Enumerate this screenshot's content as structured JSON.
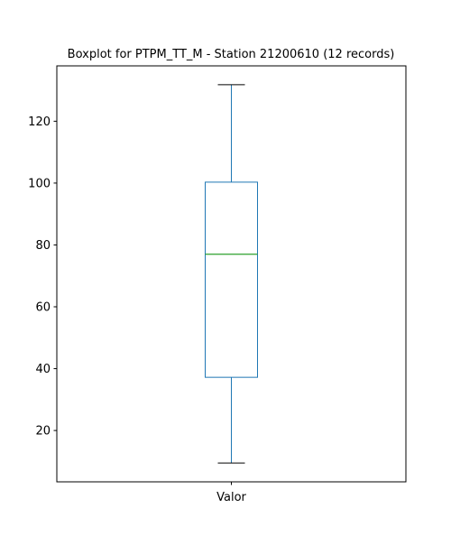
{
  "chart_data": {
    "type": "box",
    "title": "Boxplot for PTPM_TT_M - Station 21200610 (12 records)",
    "xlabel": "",
    "ylabel": "",
    "categories": [
      "Valor"
    ],
    "series": [
      {
        "category": "Valor",
        "whisker_low": 9.5,
        "q1": 37.2,
        "median": 77.0,
        "q3": 100.3,
        "whisker_high": 131.8
      }
    ],
    "ylim": [
      3.4,
      137.9
    ],
    "yticks": [
      20,
      40,
      60,
      80,
      100,
      120
    ],
    "grid": false,
    "legend": "none"
  },
  "colors": {
    "box": "#1f77b4",
    "median": "#2ca02c",
    "caps": "#000000",
    "axes": "#000000"
  }
}
